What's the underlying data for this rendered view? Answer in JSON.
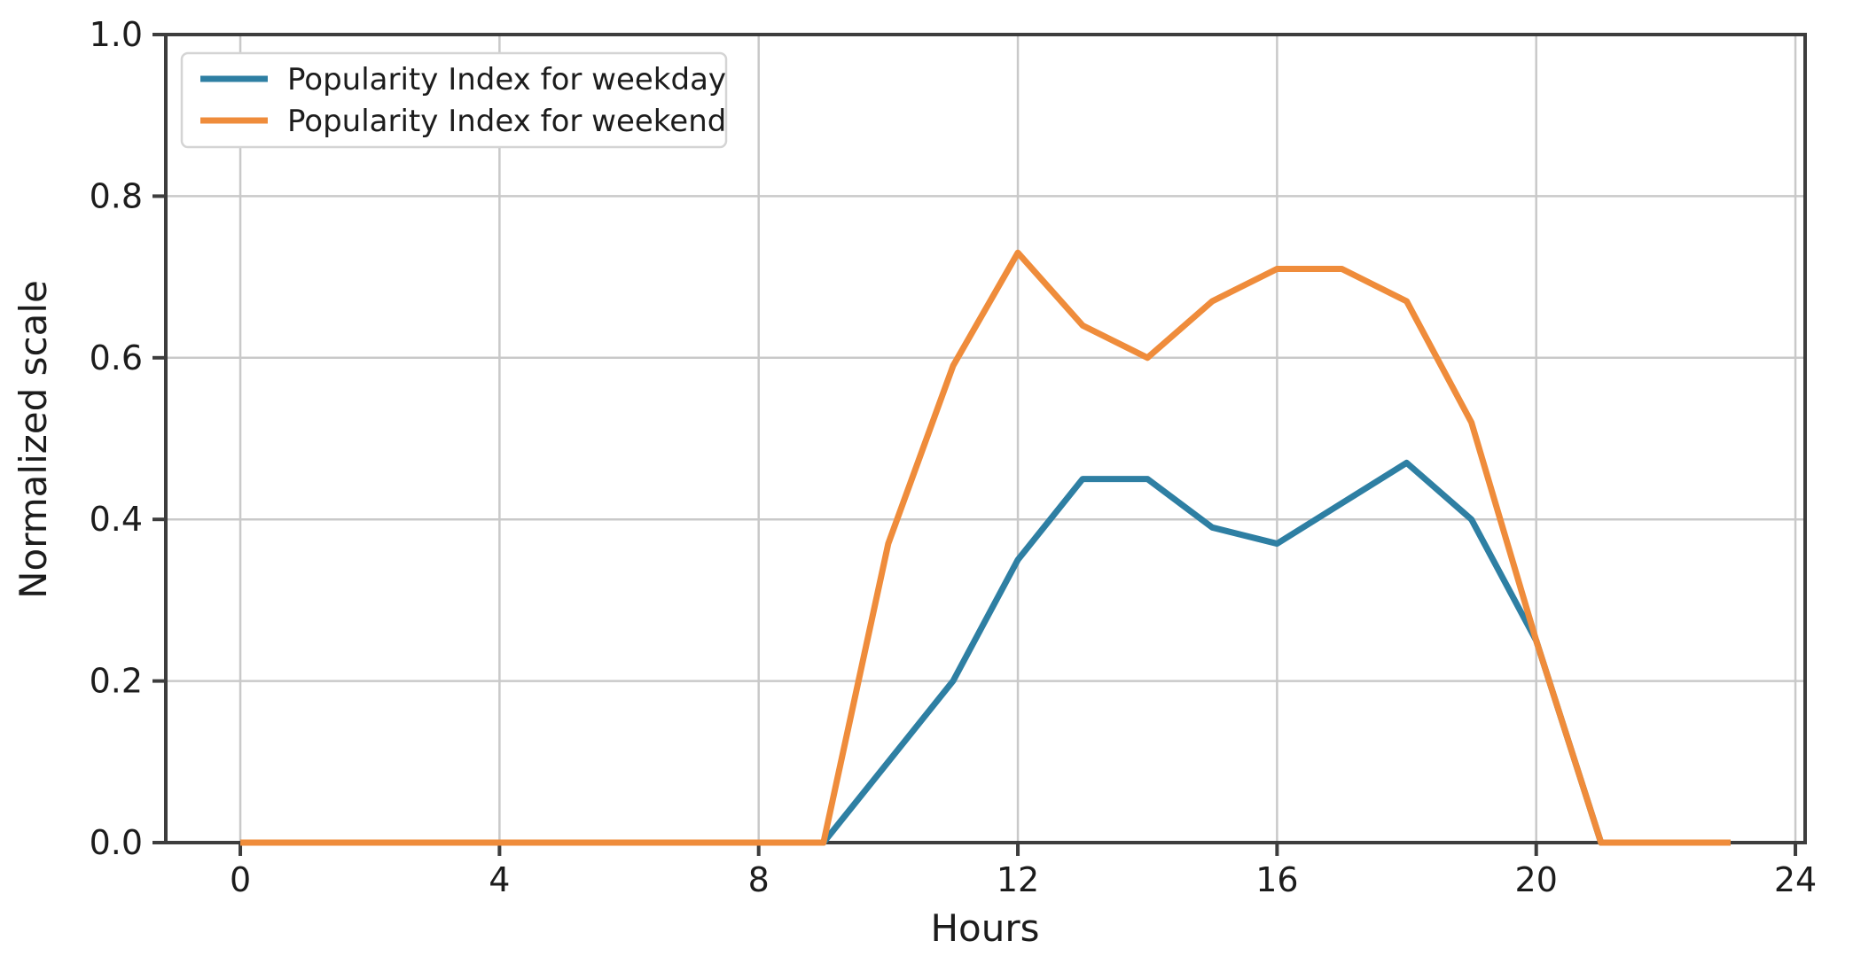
{
  "chart_data": {
    "type": "line",
    "title": "",
    "xlabel": "Hours",
    "ylabel": "Normalized scale",
    "x": [
      0,
      1,
      2,
      3,
      4,
      5,
      6,
      7,
      8,
      9,
      10,
      11,
      12,
      13,
      14,
      15,
      16,
      17,
      18,
      19,
      20,
      21,
      22,
      23
    ],
    "series": [
      {
        "name": "Popularity Index for weekday",
        "color": "#2e7fa3",
        "values": [
          0,
          0,
          0,
          0,
          0,
          0,
          0,
          0,
          0,
          0,
          0.1,
          0.2,
          0.35,
          0.45,
          0.45,
          0.39,
          0.37,
          0.42,
          0.47,
          0.4,
          0.25,
          0,
          0,
          0
        ]
      },
      {
        "name": "Popularity Index for weekend",
        "color": "#ef8c3b",
        "values": [
          0,
          0,
          0,
          0,
          0,
          0,
          0,
          0,
          0,
          0,
          0.37,
          0.59,
          0.73,
          0.64,
          0.6,
          0.67,
          0.71,
          0.71,
          0.67,
          0.52,
          0.25,
          0,
          0,
          0
        ]
      }
    ],
    "xlim": [
      -1.15,
      24.15
    ],
    "ylim": [
      0,
      1
    ],
    "xticks": [
      0,
      4,
      8,
      12,
      16,
      20,
      24
    ],
    "xtick_labels": [
      "0",
      "4",
      "8",
      "12",
      "16",
      "20",
      "24"
    ],
    "yticks": [
      0.0,
      0.2,
      0.4,
      0.6,
      0.8,
      1.0
    ],
    "ytick_labels": [
      "0.0",
      "0.2",
      "0.4",
      "0.6",
      "0.8",
      "1.0"
    ],
    "grid": true,
    "legend_position": "upper left",
    "colors": {
      "grid": "#c9c9c9",
      "spine": "#3d3d3d",
      "text": "#1c1c1c",
      "legend_border": "#d4d4d4",
      "background": "#ffffff"
    }
  }
}
